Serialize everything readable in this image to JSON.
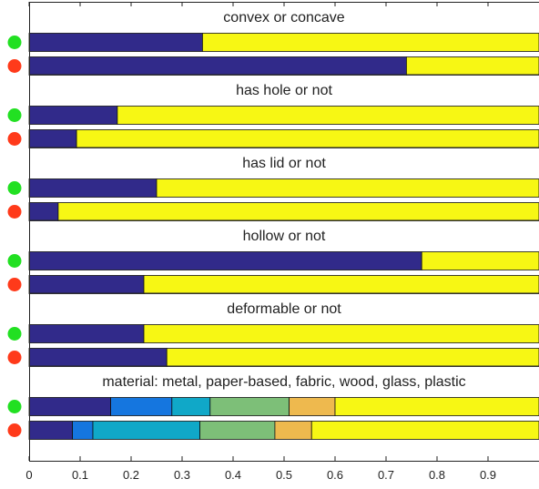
{
  "chart_data": {
    "type": "bar",
    "orientation": "horizontal-stacked",
    "xlim": [
      0,
      1
    ],
    "xticks": [
      "0",
      "0.1",
      "0.2",
      "0.3",
      "0.4",
      "0.5",
      "0.6",
      "0.7",
      "0.8",
      "0.9"
    ],
    "grid": false,
    "marker_colors": {
      "green": "#22e022",
      "red": "#ff3a1a"
    },
    "segment_colors": [
      "#312a8a",
      "#1576df",
      "#10a8c8",
      "#7dbf78",
      "#eeb94e",
      "#f7f714"
    ],
    "groups": [
      {
        "title": "convex or concave",
        "bars": [
          {
            "marker": "green",
            "values": [
              0.34,
              0.66
            ]
          },
          {
            "marker": "red",
            "values": [
              0.74,
              0.26
            ]
          }
        ]
      },
      {
        "title": "has hole or not",
        "bars": [
          {
            "marker": "green",
            "values": [
              0.173,
              0.827
            ]
          },
          {
            "marker": "red",
            "values": [
              0.093,
              0.907
            ]
          }
        ]
      },
      {
        "title": "has lid or not",
        "bars": [
          {
            "marker": "green",
            "values": [
              0.25,
              0.75
            ]
          },
          {
            "marker": "red",
            "values": [
              0.057,
              0.943
            ]
          }
        ]
      },
      {
        "title": "hollow or not",
        "bars": [
          {
            "marker": "green",
            "values": [
              0.77,
              0.23
            ]
          },
          {
            "marker": "red",
            "values": [
              0.225,
              0.775
            ]
          }
        ]
      },
      {
        "title": "deformable or not",
        "bars": [
          {
            "marker": "green",
            "values": [
              0.225,
              0.775
            ]
          },
          {
            "marker": "red",
            "values": [
              0.27,
              0.73
            ]
          }
        ]
      },
      {
        "title": "material: metal, paper-based, fabric, wood, glass, plastic",
        "bars": [
          {
            "marker": "green",
            "values": [
              0.16,
              0.12,
              0.075,
              0.155,
              0.09,
              0.4
            ]
          },
          {
            "marker": "red",
            "values": [
              0.085,
              0.04,
              0.21,
              0.147,
              0.072,
              0.446
            ]
          }
        ]
      }
    ]
  }
}
